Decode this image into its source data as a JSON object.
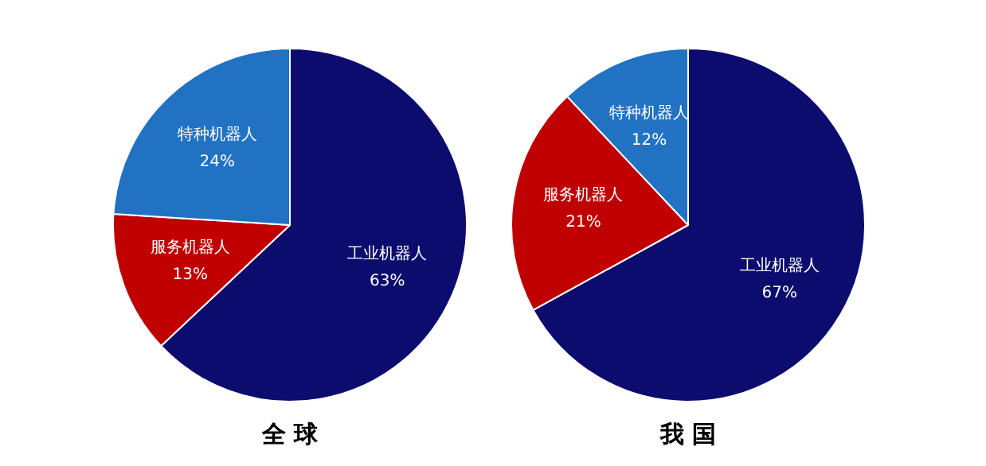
{
  "chart_data": [
    {
      "type": "pie",
      "title": "全 球",
      "categories": [
        "工业机器人",
        "服务机器人",
        "特种机器人"
      ],
      "values": [
        63,
        13,
        24
      ],
      "value_labels": [
        "63%",
        "13%",
        "24%"
      ],
      "colors": [
        "#0c0c6e",
        "#c00000",
        "#2272c3"
      ]
    },
    {
      "type": "pie",
      "title": "我 国",
      "categories": [
        "工业机器人",
        "服务机器人",
        "特种机器人"
      ],
      "values": [
        67,
        21,
        12
      ],
      "value_labels": [
        "67%",
        "21%",
        "12%"
      ],
      "colors": [
        "#0c0c6e",
        "#c00000",
        "#2272c3"
      ]
    }
  ]
}
